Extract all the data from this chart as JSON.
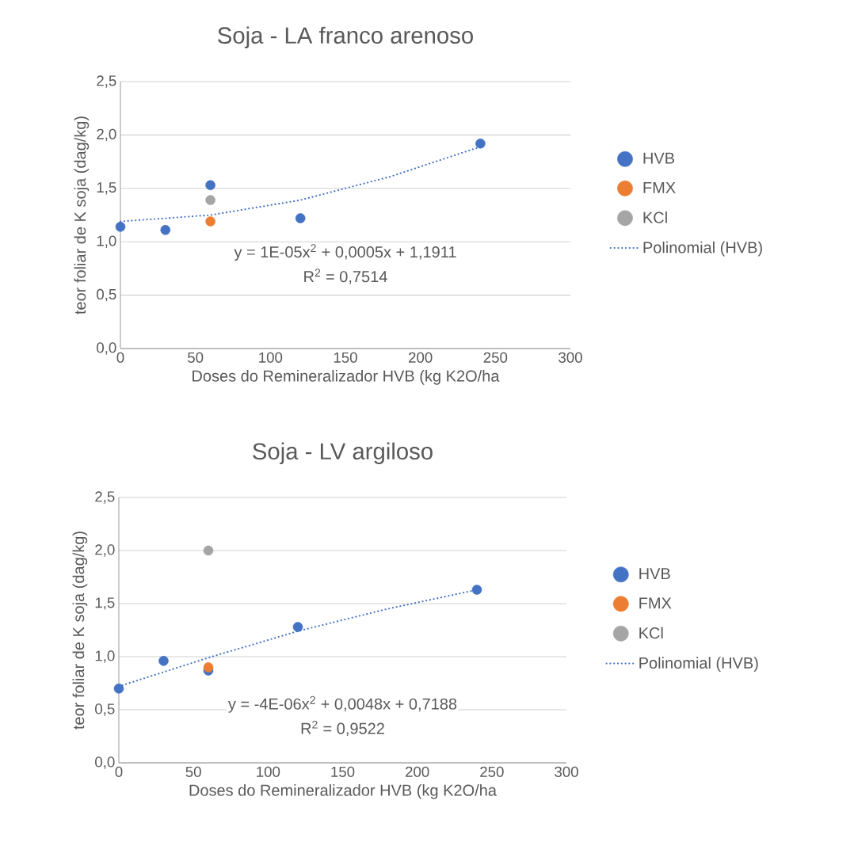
{
  "chart_data": [
    {
      "type": "scatter",
      "title": "Soja - LA franco arenoso",
      "xlabel": "Doses do Remineralizador HVB (kg K2O/ha",
      "ylabel": "teor foliar de K soja (dag/kg)",
      "series": [
        {
          "name": "HVB",
          "color": "#4472c4",
          "marker": "circle",
          "x": [
            0,
            30,
            60,
            120,
            240
          ],
          "values": [
            1.14,
            1.11,
            1.53,
            1.22,
            1.92
          ]
        },
        {
          "name": "FMX",
          "color": "#ed7d31",
          "marker": "circle",
          "x": [
            60
          ],
          "values": [
            1.19
          ]
        },
        {
          "name": "KCl",
          "color": "#a5a5a5",
          "marker": "circle",
          "x": [
            60
          ],
          "values": [
            1.39
          ]
        },
        {
          "name": "Polinomial (HVB)",
          "type": "line",
          "line_style": "dotted",
          "color": "#4472c4",
          "x": [
            0,
            60,
            120,
            180,
            240
          ],
          "values": [
            1.19,
            1.25,
            1.39,
            1.61,
            1.89
          ]
        }
      ],
      "xlim": [
        0,
        300
      ],
      "xticks": [
        0,
        50,
        100,
        150,
        200,
        250,
        300
      ],
      "ylim": [
        0,
        2.5
      ],
      "yticks": [
        {
          "value": 0,
          "label": "0,0"
        },
        {
          "value": 0.5,
          "label": "0,5"
        },
        {
          "value": 1,
          "label": "1,0"
        },
        {
          "value": 1.5,
          "label": "1,5"
        },
        {
          "value": 2,
          "label": "2,0"
        },
        {
          "value": 2.5,
          "label": "2,5"
        }
      ],
      "grid": "y",
      "legend": "right",
      "annotations": [
        "y = 1E-05x$^{2}$ + 0,0005x + 1,1911",
        "R$^{2}$ = 0,7514"
      ]
    },
    {
      "type": "scatter",
      "title": "Soja - LV argiloso",
      "xlabel": "Doses do Remineralizador HVB (kg K2O/ha",
      "ylabel": "teor foliar de K soja (dag/kg)",
      "series": [
        {
          "name": "HVB",
          "color": "#4472c4",
          "marker": "circle",
          "x": [
            0,
            30,
            60,
            120,
            240
          ],
          "values": [
            0.7,
            0.96,
            0.87,
            1.28,
            1.63
          ]
        },
        {
          "name": "FMX",
          "color": "#ed7d31",
          "marker": "circle",
          "x": [
            60
          ],
          "values": [
            0.9
          ]
        },
        {
          "name": "KCl",
          "color": "#a5a5a5",
          "marker": "circle",
          "x": [
            60
          ],
          "values": [
            2.0
          ]
        },
        {
          "name": "Polinomial (HVB)",
          "type": "line",
          "line_style": "dotted",
          "color": "#4472c4",
          "x": [
            0,
            60,
            120,
            180,
            240
          ],
          "values": [
            0.72,
            0.99,
            1.24,
            1.45,
            1.63
          ]
        }
      ],
      "xlim": [
        0,
        300
      ],
      "xticks": [
        0,
        50,
        100,
        150,
        200,
        250,
        300
      ],
      "ylim": [
        0,
        2.5
      ],
      "yticks": [
        {
          "value": 0,
          "label": "0,0"
        },
        {
          "value": 0.5,
          "label": "0,5"
        },
        {
          "value": 1,
          "label": "1,0"
        },
        {
          "value": 1.5,
          "label": "1,5"
        },
        {
          "value": 2,
          "label": "2,0"
        },
        {
          "value": 2.5,
          "label": "2,5"
        }
      ],
      "grid": "y",
      "legend": "right",
      "annotations": [
        "y = -4E-06x$^{2}$ + 0,0048x + 0,7188",
        "R$^{2}$ = 0,9522"
      ]
    }
  ]
}
